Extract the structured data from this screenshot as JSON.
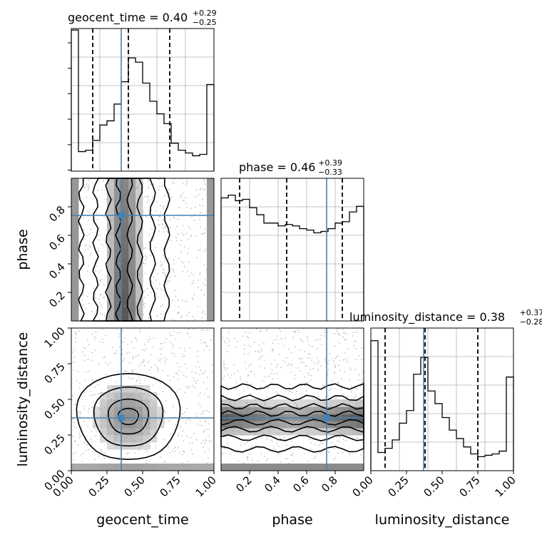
{
  "colors": {
    "truth": "#4682b4",
    "hist": "#000000",
    "quantile": "#000000",
    "grid": "#b0b0b0",
    "points": "#9a9a9a"
  },
  "chart_data": {
    "type": "corner",
    "parameters": [
      "geocent_time",
      "phase",
      "luminosity_distance"
    ],
    "truths": {
      "geocent_time": 0.35,
      "phase": 0.74,
      "luminosity_distance": 0.37
    },
    "ranges": {
      "geocent_time": [
        0.0,
        1.0
      ],
      "phase": [
        0.0,
        1.0
      ],
      "luminosity_distance": [
        0.0,
        1.0
      ]
    },
    "titles": [
      {
        "param": "geocent_time",
        "label": "geocent_time = 0.40",
        "plus": "+0.29",
        "minus": "−0.25"
      },
      {
        "param": "phase",
        "label": "phase = 0.46",
        "plus": "+0.39",
        "minus": "−0.33"
      },
      {
        "param": "luminosity_distance",
        "label": "luminosity_distance = 0.38",
        "plus": "+0.37",
        "minus": "−0.28"
      }
    ],
    "xlabels": [
      "geocent_time",
      "phase",
      "luminosity_distance"
    ],
    "ylabels": [
      "phase",
      "luminosity_distance"
    ],
    "ticks": {
      "geocent_time": [
        "0.00",
        "0.25",
        "0.50",
        "0.75",
        "1.00"
      ],
      "phase": [
        "0.2",
        "0.4",
        "0.6",
        "0.8"
      ],
      "luminosity_distance": [
        "0.00",
        "0.25",
        "0.50",
        "0.75",
        "1.00"
      ]
    },
    "histograms": {
      "geocent_time": {
        "bins": 20,
        "values": [
          1.01,
          0.14,
          0.15,
          0.22,
          0.33,
          0.36,
          0.48,
          0.64,
          0.81,
          0.78,
          0.63,
          0.5,
          0.41,
          0.34,
          0.2,
          0.15,
          0.13,
          0.11,
          0.12,
          0.62
        ],
        "quantiles": [
          0.15,
          0.4,
          0.69
        ]
      },
      "phase": {
        "bins": 20,
        "values": [
          0.88,
          0.9,
          0.86,
          0.87,
          0.81,
          0.76,
          0.7,
          0.7,
          0.68,
          0.69,
          0.68,
          0.66,
          0.65,
          0.63,
          0.64,
          0.66,
          0.7,
          0.71,
          0.78,
          0.82
        ],
        "quantiles": [
          0.13,
          0.46,
          0.85
        ]
      },
      "luminosity_distance": {
        "bins": 20,
        "values": [
          0.93,
          0.13,
          0.16,
          0.22,
          0.34,
          0.43,
          0.69,
          0.81,
          0.57,
          0.48,
          0.38,
          0.29,
          0.23,
          0.17,
          0.12,
          0.1,
          0.11,
          0.12,
          0.14,
          0.67
        ],
        "quantiles": [
          0.1,
          0.38,
          0.75
        ]
      }
    },
    "grid": true
  }
}
